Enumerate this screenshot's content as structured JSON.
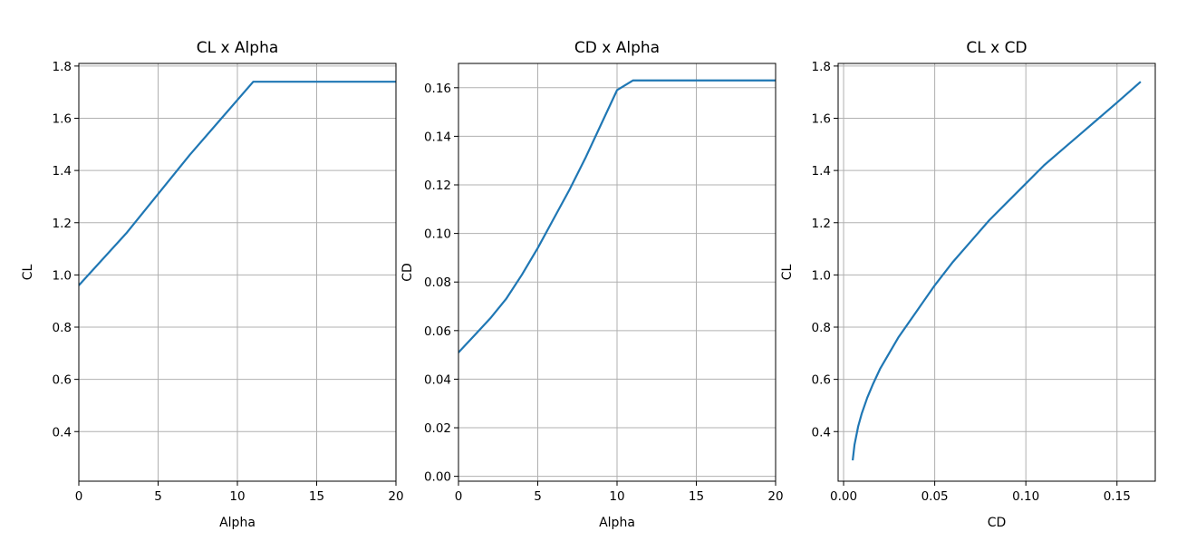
{
  "chart_data": [
    {
      "type": "line",
      "title": "CL x Alpha",
      "xlabel": "Alpha",
      "ylabel": "CL",
      "xlim": [
        0,
        20
      ],
      "ylim": [
        0.21,
        1.81
      ],
      "xticks": [
        0,
        5,
        10,
        15,
        20
      ],
      "xtick_labels": [
        "0",
        "5",
        "10",
        "15",
        "20"
      ],
      "yticks": [
        0.4,
        0.6,
        0.8,
        1.0,
        1.2,
        1.4,
        1.6,
        1.8
      ],
      "ytick_labels": [
        "0.4",
        "0.6",
        "0.8",
        "1.0",
        "1.2",
        "1.4",
        "1.6",
        "1.8"
      ],
      "grid": true,
      "series": [
        {
          "color": "#1f77b4",
          "x": [
            0,
            3,
            5,
            7,
            9,
            11,
            15,
            20
          ],
          "y": [
            0.96,
            1.16,
            1.31,
            1.46,
            1.6,
            1.74,
            1.74,
            1.74
          ]
        }
      ]
    },
    {
      "type": "line",
      "title": "CD x Alpha",
      "xlabel": "Alpha",
      "ylabel": "CD",
      "xlim": [
        0,
        20
      ],
      "ylim": [
        -0.002,
        0.17
      ],
      "xticks": [
        0,
        5,
        10,
        15,
        20
      ],
      "xtick_labels": [
        "0",
        "5",
        "10",
        "15",
        "20"
      ],
      "yticks": [
        0.0,
        0.02,
        0.04,
        0.06,
        0.08,
        0.1,
        0.12,
        0.14,
        0.16
      ],
      "ytick_labels": [
        "0.00",
        "0.02",
        "0.04",
        "0.06",
        "0.08",
        "0.10",
        "0.12",
        "0.14",
        "0.16"
      ],
      "grid": true,
      "series": [
        {
          "color": "#1f77b4",
          "x": [
            0,
            1,
            2,
            3,
            4,
            5,
            6,
            7,
            8,
            9,
            10,
            11,
            15,
            20
          ],
          "y": [
            0.051,
            0.058,
            0.065,
            0.073,
            0.083,
            0.094,
            0.106,
            0.118,
            0.131,
            0.145,
            0.159,
            0.163,
            0.163,
            0.163
          ]
        }
      ]
    },
    {
      "type": "line",
      "title": "CL x CD",
      "xlabel": "CD",
      "ylabel": "CL",
      "xlim": [
        -0.003,
        0.171
      ],
      "ylim": [
        0.21,
        1.81
      ],
      "xticks": [
        0.0,
        0.05,
        0.1,
        0.15
      ],
      "xtick_labels": [
        "0.00",
        "0.05",
        "0.10",
        "0.15"
      ],
      "yticks": [
        0.4,
        0.6,
        0.8,
        1.0,
        1.2,
        1.4,
        1.6,
        1.8
      ],
      "ytick_labels": [
        "0.4",
        "0.6",
        "0.8",
        "1.0",
        "1.2",
        "1.4",
        "1.6",
        "1.8"
      ],
      "grid": true,
      "series": [
        {
          "color": "#1f77b4",
          "x": [
            0.005,
            0.006,
            0.008,
            0.01,
            0.013,
            0.016,
            0.02,
            0.025,
            0.03,
            0.04,
            0.05,
            0.06,
            0.07,
            0.08,
            0.09,
            0.1,
            0.11,
            0.12,
            0.13,
            0.14,
            0.15,
            0.163
          ],
          "y": [
            0.29,
            0.35,
            0.42,
            0.47,
            0.53,
            0.58,
            0.64,
            0.7,
            0.76,
            0.86,
            0.96,
            1.05,
            1.13,
            1.21,
            1.28,
            1.35,
            1.42,
            1.48,
            1.54,
            1.6,
            1.66,
            1.74
          ]
        }
      ]
    }
  ]
}
